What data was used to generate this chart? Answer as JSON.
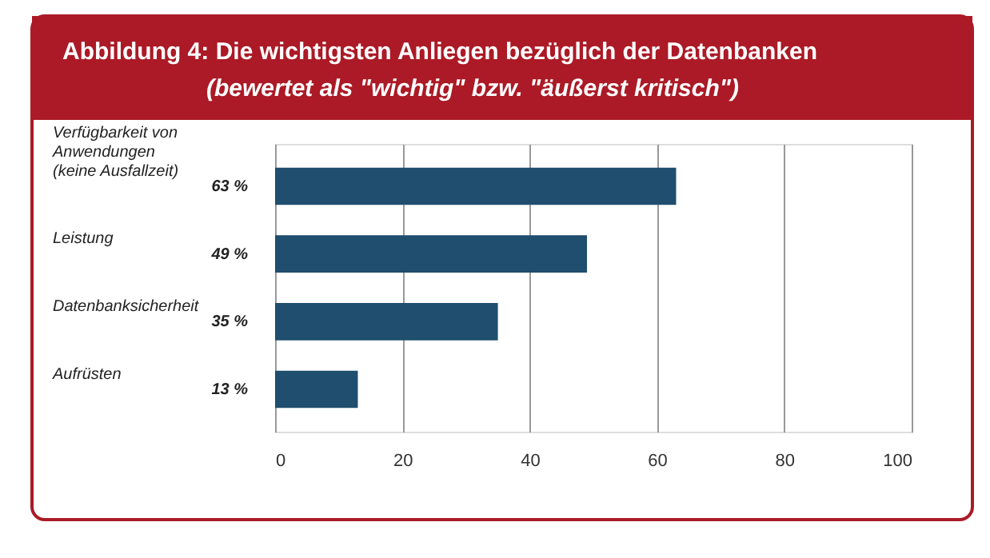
{
  "chart_data": {
    "type": "bar",
    "orientation": "horizontal",
    "title": "Abbildung 4: Die wichtigsten Anliegen bezüglich der Datenbanken",
    "subtitle": "(bewertet als \"wichtig\" bzw. \"äußerst kritisch\")",
    "categories": [
      "Verfügbarkeit von\nAnwendungen\n(keine Ausfallzeit)",
      "Leistung",
      "Datenbanksicherheit",
      "Aufrüsten"
    ],
    "values": [
      63,
      49,
      35,
      13
    ],
    "value_labels": [
      "63 %",
      "49 %",
      "35 %",
      "13 %"
    ],
    "color": "#1f4e6e",
    "xlim": [
      0,
      100
    ],
    "xticks": [
      0,
      20,
      40,
      60,
      80,
      100
    ],
    "grid": "x"
  }
}
